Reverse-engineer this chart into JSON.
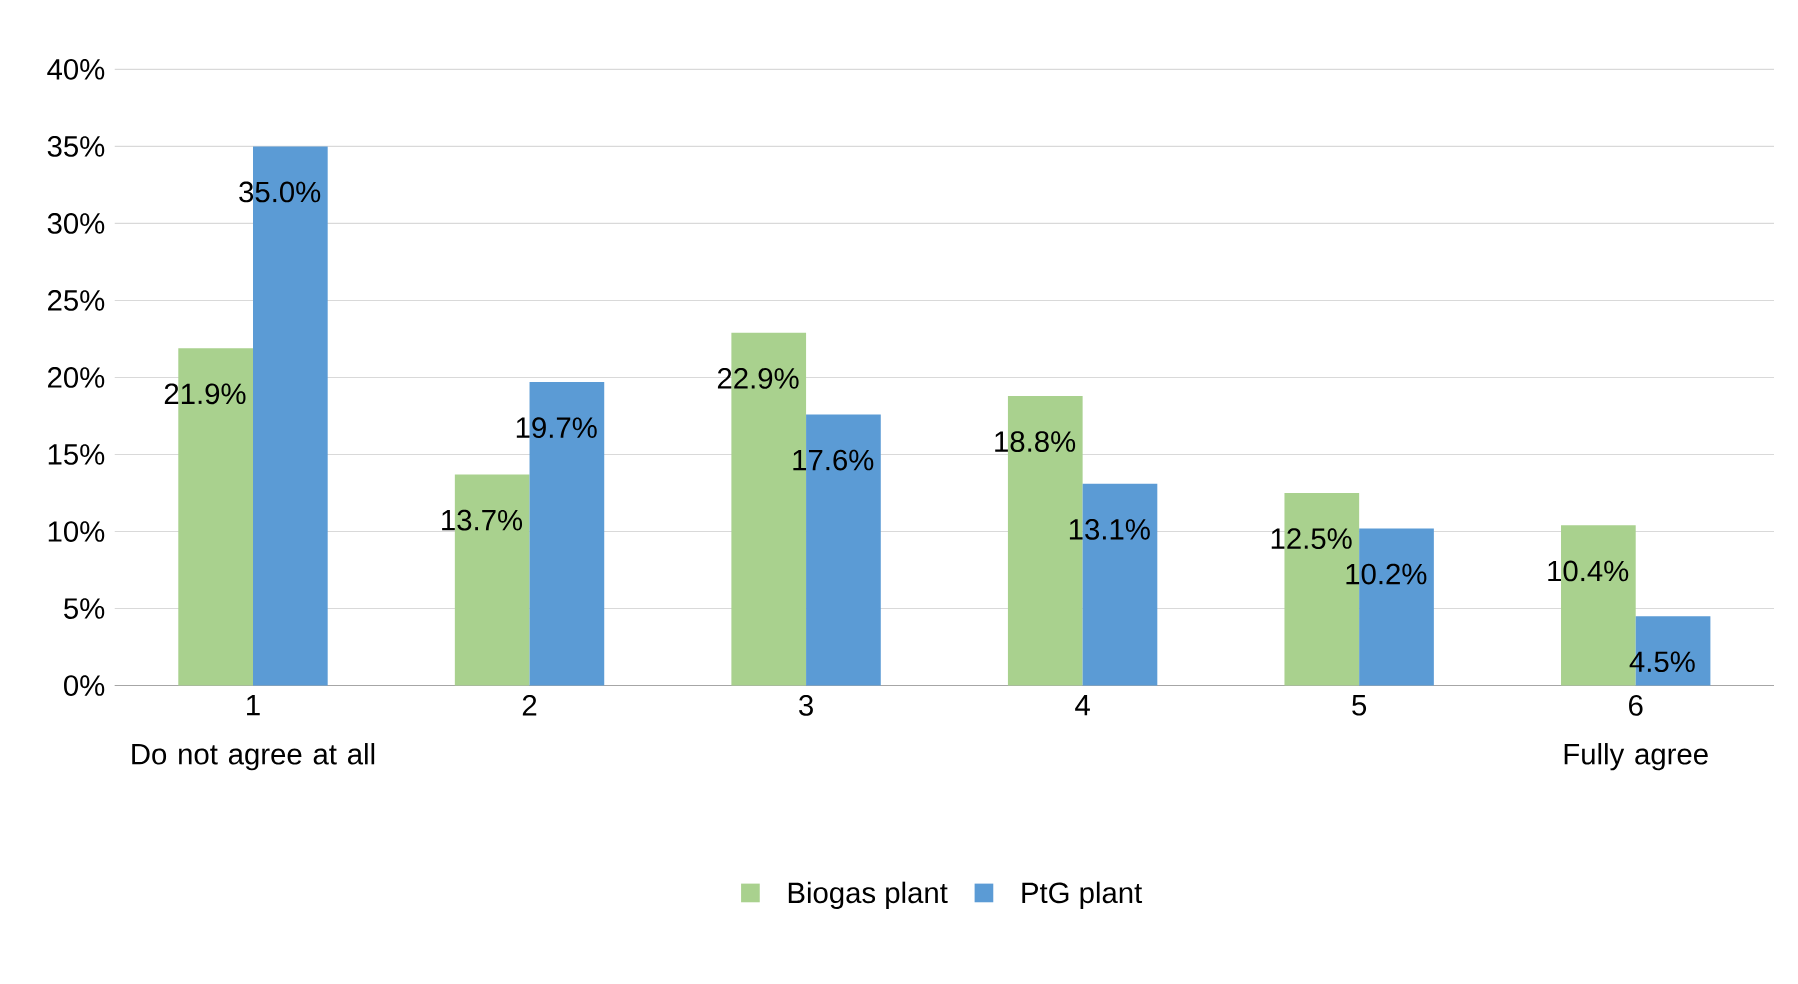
{
  "chart_data": {
    "type": "bar",
    "categories": [
      "1",
      "2",
      "3",
      "4",
      "5",
      "6"
    ],
    "series": [
      {
        "name": "Biogas plant",
        "color": "#a9d18e",
        "values": [
          21.9,
          13.7,
          22.9,
          18.8,
          12.5,
          10.4
        ],
        "value_labels": [
          "21.9%",
          "13.7%",
          "22.9%",
          "18.8%",
          "12.5%",
          "10.4%"
        ]
      },
      {
        "name": "PtG plant",
        "color": "#5b9bd5",
        "values": [
          35.0,
          19.7,
          17.6,
          13.1,
          10.2,
          4.5
        ],
        "value_labels": [
          "35.0%",
          "19.7%",
          "17.6%",
          "13.1%",
          "10.2%",
          "4.5%"
        ]
      }
    ],
    "annotations": [
      "Do not agree at all",
      "Fully agree"
    ],
    "ylim": [
      0,
      40
    ],
    "yticks": [
      {
        "value": 0,
        "label": "0%"
      },
      {
        "value": 5,
        "label": "5%"
      },
      {
        "value": 10,
        "label": "10%"
      },
      {
        "value": 15,
        "label": "15%"
      },
      {
        "value": 20,
        "label": "20%"
      },
      {
        "value": 25,
        "label": "25%"
      },
      {
        "value": 30,
        "label": "30%"
      },
      {
        "value": 35,
        "label": "35%"
      },
      {
        "value": 40,
        "label": "40%"
      }
    ],
    "grid": "y",
    "legend": "bottom"
  }
}
